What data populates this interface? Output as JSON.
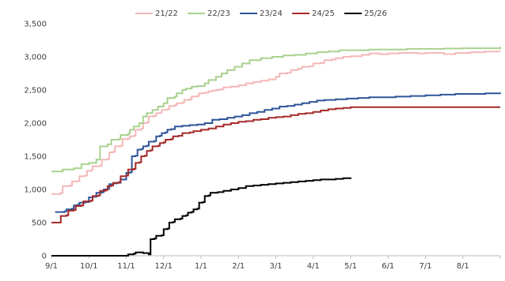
{
  "chart_data": {
    "type": "line",
    "title": "",
    "xlabel": "",
    "ylabel": "",
    "x_ticks": [
      "9/1",
      "10/1",
      "11/1",
      "12/1",
      "1/1",
      "2/1",
      "3/1",
      "4/1",
      "5/1",
      "6/1",
      "7/1",
      "8/1"
    ],
    "y_ticks": [
      "0",
      "500",
      "1,000",
      "1,500",
      "2,000",
      "2,500",
      "3,000",
      "3,500"
    ],
    "ylim": [
      0,
      3500
    ],
    "x_range_months": [
      0,
      12
    ],
    "grid": false,
    "legend_position": "top",
    "step_lines": true,
    "series": [
      {
        "name": "21/22",
        "color": "#f4b8b8",
        "points": [
          [
            0,
            930
          ],
          [
            0.25,
            950
          ],
          [
            0.3,
            1050
          ],
          [
            0.5,
            1060
          ],
          [
            0.55,
            1120
          ],
          [
            0.7,
            1125
          ],
          [
            0.75,
            1200
          ],
          [
            0.9,
            1210
          ],
          [
            0.95,
            1280
          ],
          [
            1.05,
            1290
          ],
          [
            1.1,
            1350
          ],
          [
            1.3,
            1360
          ],
          [
            1.35,
            1450
          ],
          [
            1.5,
            1460
          ],
          [
            1.55,
            1560
          ],
          [
            1.65,
            1570
          ],
          [
            1.7,
            1650
          ],
          [
            1.85,
            1660
          ],
          [
            1.9,
            1760
          ],
          [
            2.05,
            1770
          ],
          [
            2.1,
            1800
          ],
          [
            2.2,
            1810
          ],
          [
            2.25,
            1900
          ],
          [
            2.4,
            1920
          ],
          [
            2.45,
            2000
          ],
          [
            2.55,
            2010
          ],
          [
            2.6,
            2100
          ],
          [
            2.75,
            2110
          ],
          [
            2.8,
            2150
          ],
          [
            2.9,
            2160
          ],
          [
            2.95,
            2200
          ],
          [
            3.1,
            2210
          ],
          [
            3.15,
            2260
          ],
          [
            3.3,
            2270
          ],
          [
            3.35,
            2300
          ],
          [
            3.5,
            2310
          ],
          [
            3.55,
            2350
          ],
          [
            3.7,
            2360
          ],
          [
            3.75,
            2400
          ],
          [
            3.9,
            2410
          ],
          [
            3.95,
            2450
          ],
          [
            4.1,
            2460
          ],
          [
            4.2,
            2480
          ],
          [
            4.3,
            2490
          ],
          [
            4.4,
            2500
          ],
          [
            4.5,
            2510
          ],
          [
            4.6,
            2540
          ],
          [
            4.8,
            2550
          ],
          [
            5,
            2570
          ],
          [
            5.2,
            2600
          ],
          [
            5.4,
            2620
          ],
          [
            5.6,
            2640
          ],
          [
            5.8,
            2660
          ],
          [
            6,
            2700
          ],
          [
            6.1,
            2750
          ],
          [
            6.3,
            2760
          ],
          [
            6.4,
            2800
          ],
          [
            6.6,
            2820
          ],
          [
            6.7,
            2850
          ],
          [
            6.9,
            2860
          ],
          [
            7,
            2900
          ],
          [
            7.2,
            2910
          ],
          [
            7.3,
            2950
          ],
          [
            7.5,
            2960
          ],
          [
            7.6,
            2980
          ],
          [
            7.8,
            3000
          ],
          [
            8,
            3010
          ],
          [
            8.3,
            3030
          ],
          [
            8.5,
            3050
          ],
          [
            8.8,
            3040
          ],
          [
            9,
            3050
          ],
          [
            9.3,
            3060
          ],
          [
            9.6,
            3060
          ],
          [
            9.8,
            3050
          ],
          [
            10,
            3060
          ],
          [
            10.5,
            3040
          ],
          [
            10.8,
            3060
          ],
          [
            11.2,
            3070
          ],
          [
            11.6,
            3080
          ],
          [
            12,
            3080
          ]
        ]
      },
      {
        "name": "22/23",
        "color": "#a9d18e",
        "points": [
          [
            0,
            1270
          ],
          [
            0.3,
            1300
          ],
          [
            0.6,
            1320
          ],
          [
            0.8,
            1380
          ],
          [
            1,
            1400
          ],
          [
            1.2,
            1450
          ],
          [
            1.3,
            1650
          ],
          [
            1.5,
            1680
          ],
          [
            1.6,
            1750
          ],
          [
            1.8,
            1760
          ],
          [
            1.85,
            1820
          ],
          [
            2.05,
            1840
          ],
          [
            2.1,
            1900
          ],
          [
            2.2,
            1950
          ],
          [
            2.35,
            2000
          ],
          [
            2.45,
            2100
          ],
          [
            2.55,
            2150
          ],
          [
            2.7,
            2200
          ],
          [
            2.85,
            2250
          ],
          [
            3,
            2300
          ],
          [
            3.1,
            2380
          ],
          [
            3.3,
            2400
          ],
          [
            3.35,
            2450
          ],
          [
            3.5,
            2500
          ],
          [
            3.6,
            2520
          ],
          [
            3.75,
            2550
          ],
          [
            3.9,
            2560
          ],
          [
            4.1,
            2600
          ],
          [
            4.2,
            2650
          ],
          [
            4.4,
            2700
          ],
          [
            4.55,
            2750
          ],
          [
            4.7,
            2800
          ],
          [
            4.9,
            2850
          ],
          [
            5.1,
            2900
          ],
          [
            5.3,
            2950
          ],
          [
            5.6,
            2980
          ],
          [
            5.9,
            3000
          ],
          [
            6.2,
            3020
          ],
          [
            6.5,
            3030
          ],
          [
            6.8,
            3050
          ],
          [
            7.1,
            3070
          ],
          [
            7.4,
            3080
          ],
          [
            7.7,
            3100
          ],
          [
            8,
            3100
          ],
          [
            8.5,
            3110
          ],
          [
            9,
            3110
          ],
          [
            9.5,
            3120
          ],
          [
            10,
            3120
          ],
          [
            10.5,
            3125
          ],
          [
            11,
            3130
          ],
          [
            11.5,
            3130
          ],
          [
            12,
            3150
          ]
        ]
      },
      {
        "name": "23/24",
        "color": "#2e5597",
        "points": [
          [
            0.1,
            660
          ],
          [
            0.35,
            670
          ],
          [
            0.4,
            700
          ],
          [
            0.55,
            710
          ],
          [
            0.6,
            760
          ],
          [
            0.7,
            770
          ],
          [
            0.75,
            800
          ],
          [
            0.9,
            810
          ],
          [
            1,
            880
          ],
          [
            1.1,
            890
          ],
          [
            1.2,
            950
          ],
          [
            1.35,
            960
          ],
          [
            1.4,
            1000
          ],
          [
            1.5,
            1010
          ],
          [
            1.55,
            1080
          ],
          [
            1.65,
            1090
          ],
          [
            1.75,
            1100
          ],
          [
            1.85,
            1150
          ],
          [
            2,
            1250
          ],
          [
            2.1,
            1260
          ],
          [
            2.15,
            1500
          ],
          [
            2.25,
            1510
          ],
          [
            2.3,
            1600
          ],
          [
            2.4,
            1610
          ],
          [
            2.45,
            1650
          ],
          [
            2.55,
            1660
          ],
          [
            2.6,
            1720
          ],
          [
            2.75,
            1730
          ],
          [
            2.8,
            1800
          ],
          [
            2.9,
            1810
          ],
          [
            2.95,
            1850
          ],
          [
            3.05,
            1860
          ],
          [
            3.1,
            1900
          ],
          [
            3.2,
            1910
          ],
          [
            3.3,
            1950
          ],
          [
            3.5,
            1960
          ],
          [
            3.7,
            1970
          ],
          [
            3.9,
            1980
          ],
          [
            4.1,
            2000
          ],
          [
            4.3,
            2050
          ],
          [
            4.5,
            2060
          ],
          [
            4.7,
            2080
          ],
          [
            4.9,
            2100
          ],
          [
            5.1,
            2120
          ],
          [
            5.3,
            2150
          ],
          [
            5.5,
            2170
          ],
          [
            5.7,
            2200
          ],
          [
            5.9,
            2220
          ],
          [
            6.1,
            2250
          ],
          [
            6.3,
            2260
          ],
          [
            6.5,
            2280
          ],
          [
            6.7,
            2300
          ],
          [
            6.9,
            2320
          ],
          [
            7.1,
            2340
          ],
          [
            7.3,
            2350
          ],
          [
            7.6,
            2360
          ],
          [
            7.9,
            2370
          ],
          [
            8.2,
            2380
          ],
          [
            8.5,
            2390
          ],
          [
            8.8,
            2390
          ],
          [
            9.2,
            2400
          ],
          [
            9.6,
            2410
          ],
          [
            10,
            2420
          ],
          [
            10.4,
            2430
          ],
          [
            10.8,
            2440
          ],
          [
            11.2,
            2440
          ],
          [
            11.6,
            2450
          ],
          [
            12,
            2440
          ]
        ]
      },
      {
        "name": "24/25",
        "color": "#a52a2a",
        "points": [
          [
            0,
            500
          ],
          [
            0.2,
            500
          ],
          [
            0.25,
            600
          ],
          [
            0.4,
            610
          ],
          [
            0.45,
            680
          ],
          [
            0.6,
            690
          ],
          [
            0.65,
            750
          ],
          [
            0.8,
            760
          ],
          [
            0.85,
            820
          ],
          [
            1.05,
            830
          ],
          [
            1.1,
            900
          ],
          [
            1.25,
            910
          ],
          [
            1.3,
            980
          ],
          [
            1.45,
            990
          ],
          [
            1.5,
            1050
          ],
          [
            1.6,
            1060
          ],
          [
            1.65,
            1100
          ],
          [
            1.8,
            1110
          ],
          [
            1.85,
            1200
          ],
          [
            2,
            1210
          ],
          [
            2.05,
            1300
          ],
          [
            2.2,
            1310
          ],
          [
            2.25,
            1400
          ],
          [
            2.35,
            1410
          ],
          [
            2.4,
            1500
          ],
          [
            2.5,
            1510
          ],
          [
            2.55,
            1580
          ],
          [
            2.65,
            1590
          ],
          [
            2.7,
            1650
          ],
          [
            2.85,
            1660
          ],
          [
            2.9,
            1700
          ],
          [
            3,
            1710
          ],
          [
            3.05,
            1750
          ],
          [
            3.2,
            1760
          ],
          [
            3.25,
            1800
          ],
          [
            3.4,
            1810
          ],
          [
            3.5,
            1850
          ],
          [
            3.7,
            1860
          ],
          [
            3.8,
            1880
          ],
          [
            4,
            1900
          ],
          [
            4.2,
            1920
          ],
          [
            4.4,
            1950
          ],
          [
            4.6,
            1980
          ],
          [
            4.8,
            2000
          ],
          [
            5,
            2020
          ],
          [
            5.2,
            2030
          ],
          [
            5.4,
            2050
          ],
          [
            5.6,
            2060
          ],
          [
            5.8,
            2080
          ],
          [
            6,
            2090
          ],
          [
            6.2,
            2100
          ],
          [
            6.4,
            2120
          ],
          [
            6.6,
            2140
          ],
          [
            6.8,
            2150
          ],
          [
            7,
            2170
          ],
          [
            7.2,
            2190
          ],
          [
            7.4,
            2210
          ],
          [
            7.6,
            2220
          ],
          [
            7.8,
            2230
          ],
          [
            8,
            2240
          ],
          [
            8.5,
            2240
          ],
          [
            9,
            2240
          ],
          [
            9.5,
            2240
          ],
          [
            10,
            2240
          ],
          [
            10.5,
            2240
          ],
          [
            11,
            2240
          ],
          [
            11.5,
            2240
          ],
          [
            12,
            2240
          ]
        ]
      },
      {
        "name": "25/26",
        "color": "#000000",
        "points": [
          [
            0,
            0
          ],
          [
            2,
            0
          ],
          [
            2.05,
            20
          ],
          [
            2.2,
            30
          ],
          [
            2.25,
            50
          ],
          [
            2.45,
            40
          ],
          [
            2.6,
            20
          ],
          [
            2.65,
            250
          ],
          [
            2.75,
            260
          ],
          [
            2.8,
            300
          ],
          [
            2.95,
            310
          ],
          [
            3,
            400
          ],
          [
            3.1,
            410
          ],
          [
            3.15,
            500
          ],
          [
            3.25,
            510
          ],
          [
            3.3,
            550
          ],
          [
            3.45,
            560
          ],
          [
            3.5,
            600
          ],
          [
            3.6,
            610
          ],
          [
            3.65,
            650
          ],
          [
            3.75,
            660
          ],
          [
            3.8,
            700
          ],
          [
            3.9,
            710
          ],
          [
            3.95,
            800
          ],
          [
            4.05,
            810
          ],
          [
            4.1,
            900
          ],
          [
            4.2,
            910
          ],
          [
            4.25,
            950
          ],
          [
            4.45,
            960
          ],
          [
            4.6,
            980
          ],
          [
            4.8,
            1000
          ],
          [
            5,
            1020
          ],
          [
            5.2,
            1050
          ],
          [
            5.4,
            1060
          ],
          [
            5.6,
            1070
          ],
          [
            5.8,
            1080
          ],
          [
            6,
            1090
          ],
          [
            6.2,
            1100
          ],
          [
            6.4,
            1110
          ],
          [
            6.6,
            1120
          ],
          [
            6.8,
            1130
          ],
          [
            7,
            1140
          ],
          [
            7.2,
            1150
          ],
          [
            7.4,
            1150
          ],
          [
            7.6,
            1160
          ],
          [
            7.8,
            1170
          ],
          [
            8,
            1180
          ]
        ]
      }
    ]
  }
}
